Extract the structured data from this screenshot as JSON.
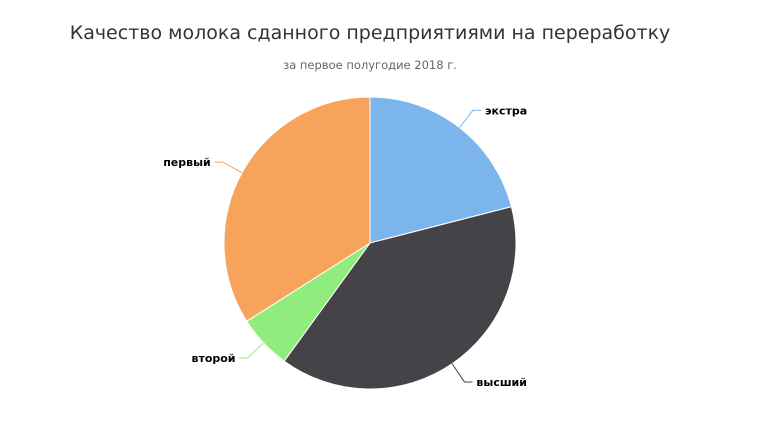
{
  "chart_data": {
    "type": "pie",
    "title": "Качество молока сданного предприятиями на переработку",
    "subtitle": "за первое полугодие 2018 г.",
    "categories": [
      "экстра",
      "высший",
      "второй",
      "первый"
    ],
    "values": [
      21,
      39,
      6,
      34
    ],
    "colors": [
      "#7cb5ec",
      "#434348",
      "#90ed7d",
      "#f7a35c"
    ],
    "legend": "none"
  }
}
